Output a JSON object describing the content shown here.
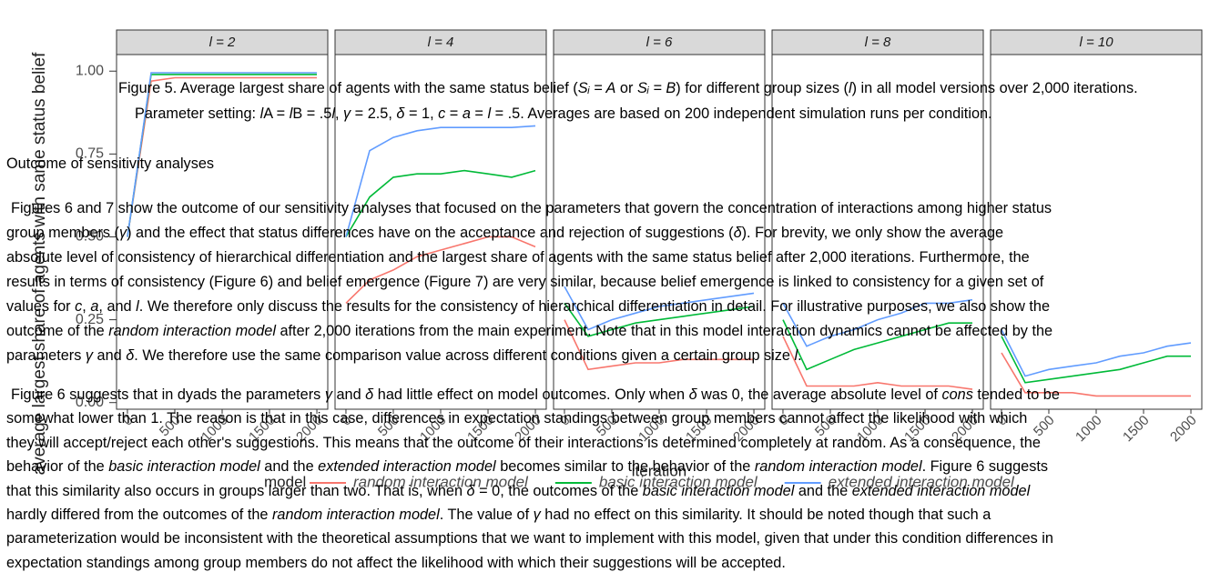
{
  "chart_data": {
    "type": "line",
    "y_label": "average largest share of agents with same status belief",
    "x_label": "iteration",
    "legend_title": "model",
    "x": [
      0,
      250,
      500,
      750,
      1000,
      1250,
      1500,
      1750,
      2000
    ],
    "xlim": [
      -115,
      2115
    ],
    "xticks": [
      0,
      500,
      1000,
      1500,
      2000
    ],
    "ylim": [
      -0.02,
      1.05
    ],
    "yticks": [
      {
        "value": 0,
        "label": "0.00"
      },
      {
        "value": 0.25,
        "label": "0.25"
      },
      {
        "value": 0.5,
        "label": "0.50"
      },
      {
        "value": 0.75,
        "label": "0.75"
      },
      {
        "value": 1,
        "label": "1.00"
      }
    ],
    "series": [
      {
        "name": "random interaction model",
        "color": "#f8766d"
      },
      {
        "name": "basic interaction model",
        "color": "#00ba38"
      },
      {
        "name": "extended interaction model",
        "color": "#619cff"
      }
    ],
    "panels": [
      {
        "title": "l = 2",
        "values": [
          [
            0.5,
            0.97,
            0.98,
            0.98,
            0.98,
            0.98,
            0.98,
            0.98,
            0.98
          ],
          [
            0.5,
            0.99,
            0.99,
            0.99,
            0.99,
            0.99,
            0.99,
            0.99,
            0.99
          ],
          [
            0.5,
            0.995,
            0.995,
            0.995,
            0.995,
            0.995,
            0.995,
            0.995,
            0.995
          ]
        ]
      },
      {
        "title": "l = 4",
        "values": [
          [
            0.3,
            0.37,
            0.4,
            0.44,
            0.46,
            0.48,
            0.5,
            0.5,
            0.47
          ],
          [
            0.5,
            0.62,
            0.68,
            0.69,
            0.69,
            0.7,
            0.69,
            0.68,
            0.7
          ],
          [
            0.5,
            0.76,
            0.8,
            0.82,
            0.83,
            0.83,
            0.83,
            0.83,
            0.835
          ]
        ]
      },
      {
        "title": "l = 6",
        "values": [
          [
            0.25,
            0.1,
            0.11,
            0.12,
            0.12,
            0.13,
            0.13,
            0.13,
            0.13
          ],
          [
            0.3,
            0.2,
            0.22,
            0.24,
            0.25,
            0.26,
            0.27,
            0.28,
            0.29
          ],
          [
            0.35,
            0.22,
            0.25,
            0.27,
            0.29,
            0.3,
            0.31,
            0.32,
            0.33
          ]
        ]
      },
      {
        "title": "l = 8",
        "values": [
          [
            0.2,
            0.05,
            0.05,
            0.05,
            0.06,
            0.05,
            0.05,
            0.05,
            0.04
          ],
          [
            0.25,
            0.1,
            0.13,
            0.16,
            0.18,
            0.2,
            0.22,
            0.24,
            0.24
          ],
          [
            0.3,
            0.17,
            0.2,
            0.22,
            0.25,
            0.27,
            0.3,
            0.3,
            0.31
          ]
        ]
      },
      {
        "title": "l = 10",
        "values": [
          [
            0.15,
            0.03,
            0.03,
            0.03,
            0.02,
            0.02,
            0.02,
            0.02,
            0.02
          ],
          [
            0.2,
            0.06,
            0.07,
            0.08,
            0.09,
            0.1,
            0.12,
            0.14,
            0.14
          ],
          [
            0.22,
            0.08,
            0.1,
            0.11,
            0.12,
            0.14,
            0.15,
            0.17,
            0.18
          ]
        ]
      }
    ]
  },
  "caption": [
    [
      "Figure 5. Average largest share of agents with the same status belief (",
      "Sᵢ = A",
      " or ",
      "Sᵢ = B",
      ") for different group sizes (",
      "l",
      ") in all model versions over 2,000 iterations."
    ],
    [
      "Parameter setting: ",
      "l",
      "A = ",
      "l",
      "B = .5",
      "l",
      ", ",
      "γ",
      " = 2.5, ",
      "δ",
      " = 1, ",
      "c",
      " = ",
      "a",
      " = ",
      "l",
      " = .5. Averages are based on 200 independent simulation runs per condition."
    ]
  ],
  "heading": "Outcome of sensitivity analyses",
  "paragraphs": [
    [
      [
        "Figures 6 and 7 show the outcome of our sensitivity analyses that focused on the parameters that govern the concentration of interactions among higher status"
      ],
      [
        "group members (",
        "γ",
        ") and the effect that status differences have on the acceptance and rejection of suggestions (",
        "δ",
        "). For brevity, we only show the average"
      ],
      [
        "absolute level of consistency of hierarchical differentiation and the largest share of agents with the same status belief after 2,000 iterations. Furthermore, the"
      ],
      [
        "results in terms of consistency (Figure 6) and belief emergence (Figure 7) are very similar, because belief emergence is linked to consistency for a given set of"
      ],
      [
        "values for ",
        "c",
        ", ",
        "a",
        ", and ",
        "l",
        ". We therefore only discuss the results for the consistency of hierarchical differentiation in detail. For illustrative purposes, we also show the"
      ],
      [
        "outcome of the ",
        "random interaction model",
        " after 2,000 iterations from the main experiment. Note that in this model interaction dynamics cannot be affected by the"
      ],
      [
        "parameters ",
        "γ",
        " and ",
        "δ",
        ". We therefore use the same comparison value across different conditions given a certain group size ",
        "l",
        "."
      ]
    ],
    [
      [
        "Figure 6 suggests that in dyads the parameters ",
        "γ",
        " and ",
        "δ",
        " had little effect on model outcomes. Only when ",
        "δ",
        " was 0, the average absolute level of ",
        "cons",
        " tended to be"
      ],
      [
        "somewhat lower than 1. The reason is that in this case, differences in expectation standings between group members cannot affect the likelihood with which"
      ],
      [
        "they will accept/reject each other's suggestions. This means that the outcome of their interactions is determined completely at random. As a consequence, the"
      ],
      [
        "behavior of the ",
        "basic interaction model",
        " and the ",
        "extended interaction model",
        " becomes similar to the behavior of the ",
        "random interaction model",
        ". Figure 6 suggests"
      ],
      [
        "that this similarity also occurs in groups larger than two. That is, when ",
        "δ",
        " = 0, the outcomes of the ",
        "basic interaction model",
        " and the ",
        "extended interaction model"
      ],
      [
        "hardly differed from the outcomes of the ",
        "random interaction model",
        ". The value of ",
        "γ",
        " had no effect on this similarity. It should be noted though that such a"
      ],
      [
        "parameterization would be inconsistent with the theoretical assumptions that we want to implement with this model, given that under this condition differences in"
      ],
      [
        "expectation standings among group members do not affect the likelihood with which their suggestions will be accepted."
      ]
    ]
  ]
}
